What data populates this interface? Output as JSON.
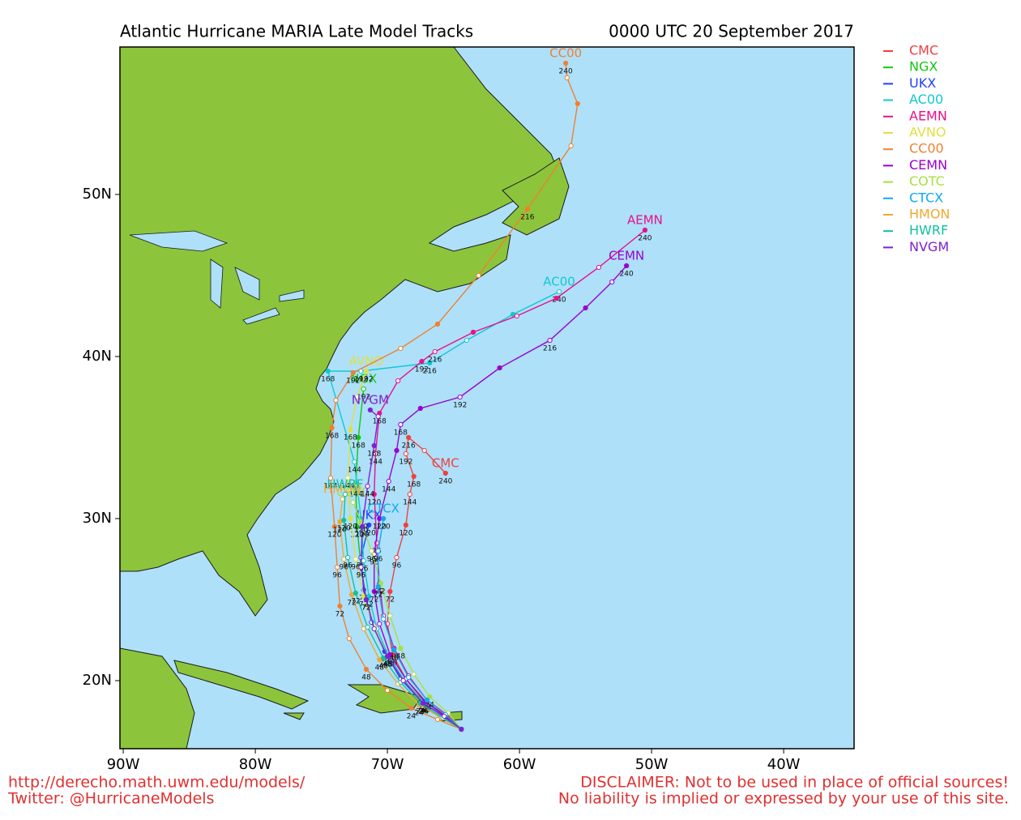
{
  "chart_data": {
    "type": "map",
    "title": "Atlantic Hurricane MARIA Late Model Tracks",
    "subtitle": "0000 UTC 20 September 2017",
    "xlim": [
      -90.25,
      -34.67
    ],
    "ylim": [
      15.8,
      59.1
    ],
    "xticks": [
      {
        "value": -90,
        "label": "90W"
      },
      {
        "value": -80,
        "label": "80W"
      },
      {
        "value": -70,
        "label": "70W"
      },
      {
        "value": -60,
        "label": "60W"
      },
      {
        "value": -50,
        "label": "50W"
      },
      {
        "value": -40,
        "label": "40W"
      }
    ],
    "yticks": [
      {
        "value": 20,
        "label": "20N"
      },
      {
        "value": 30,
        "label": "30N"
      },
      {
        "value": 40,
        "label": "40N"
      },
      {
        "value": 50,
        "label": "50N"
      }
    ],
    "series": [
      {
        "name": "CMC",
        "color": "#f04040",
        "x": [
          -64.4,
          -65.6,
          -67.2,
          -68.6,
          -69.6,
          -70.0,
          -69.8,
          -69.3,
          -68.6,
          -68.3,
          -68.0,
          -68.6,
          -68.4,
          -67.2,
          -65.6
        ],
        "values": [
          17.0,
          17.9,
          18.7,
          20.1,
          21.6,
          23.5,
          25.5,
          27.6,
          29.6,
          31.5,
          32.6,
          34.0,
          35.0,
          34.2,
          32.8
        ],
        "hours": [
          null,
          null,
          24,
          null,
          48,
          null,
          72,
          96,
          120,
          144,
          168,
          192,
          216,
          null,
          240
        ]
      },
      {
        "name": "NGX",
        "color": "#10c810",
        "x": [
          -64.4,
          -65.7,
          -67.3,
          -68.8,
          -70.0,
          -71.0,
          -71.6,
          -72.0,
          -72.3,
          -72.4,
          -72.2,
          -71.8
        ],
        "values": [
          17.0,
          17.8,
          18.6,
          20.0,
          21.5,
          23.2,
          25.0,
          27.0,
          29.5,
          32.0,
          35.0,
          38.0
        ],
        "hours": [
          null,
          null,
          24,
          null,
          48,
          null,
          72,
          96,
          120,
          144,
          168,
          192
        ]
      },
      {
        "name": "UKX",
        "color": "#2040ff",
        "x": [
          -64.4,
          -65.8,
          -67.4,
          -69.0,
          -70.2,
          -71.2,
          -71.8,
          -72.0,
          -71.4
        ],
        "values": [
          17.0,
          17.8,
          18.7,
          20.1,
          21.8,
          23.6,
          25.6,
          27.6,
          29.6
        ],
        "hours": [
          null,
          null,
          24,
          null,
          48,
          null,
          72,
          96,
          120
        ]
      },
      {
        "name": "AC00",
        "color": "#10c8d0",
        "x": [
          -64.4,
          -65.6,
          -67.2,
          -68.7,
          -69.9,
          -70.8,
          -71.4,
          -71.8,
          -72.0,
          -72.5,
          -74.5,
          -72.0,
          -66.8,
          -64.0,
          -60.5,
          -57.0
        ],
        "values": [
          17.0,
          17.8,
          18.6,
          20.0,
          21.5,
          23.2,
          25.2,
          27.4,
          30.0,
          33.5,
          39.1,
          39.1,
          39.6,
          41.0,
          42.6,
          44.0
        ],
        "hours": [
          null,
          null,
          24,
          null,
          48,
          null,
          72,
          96,
          120,
          144,
          168,
          192,
          216,
          null,
          null,
          240
        ]
      },
      {
        "name": "AEMN",
        "color": "#e8108c",
        "x": [
          -64.4,
          -65.5,
          -67.0,
          -68.4,
          -69.5,
          -70.3,
          -70.6,
          -70.8,
          -71.0,
          -70.9,
          -70.6,
          -69.2,
          -67.4,
          -66.4,
          -63.5,
          -60.2,
          -57.2,
          -54.0,
          -50.5
        ],
        "values": [
          17.0,
          17.9,
          18.8,
          20.3,
          22.0,
          24.0,
          26.0,
          28.5,
          31.5,
          34.0,
          36.5,
          38.5,
          39.7,
          40.3,
          41.5,
          42.5,
          43.6,
          45.5,
          47.8
        ],
        "hours": [
          null,
          null,
          24,
          null,
          48,
          null,
          72,
          96,
          120,
          144,
          168,
          null,
          192,
          216,
          null,
          null,
          null,
          null,
          240
        ]
      },
      {
        "name": "AVNO",
        "color": "#e0e040",
        "x": [
          -64.4,
          -65.7,
          -67.3,
          -68.8,
          -70.0,
          -71.0,
          -71.8,
          -72.4,
          -72.8,
          -73.0,
          -72.8,
          -72.3,
          -71.6
        ],
        "values": [
          17.0,
          17.8,
          18.6,
          20.0,
          21.5,
          23.3,
          25.2,
          27.5,
          30.0,
          32.5,
          35.5,
          37.5,
          39.1
        ],
        "hours": [
          null,
          null,
          24,
          null,
          48,
          null,
          72,
          96,
          120,
          144,
          168,
          null,
          192
        ]
      },
      {
        "name": "CC00",
        "color": "#f08030",
        "x": [
          -64.4,
          -66.2,
          -68.2,
          -70.0,
          -71.6,
          -72.9,
          -73.6,
          -73.8,
          -74.0,
          -74.3,
          -74.2,
          -73.9,
          -72.6,
          -69.0,
          -66.2,
          -63.1,
          -59.4,
          -56.1,
          -55.6,
          -56.4,
          -56.5
        ],
        "values": [
          17.0,
          17.6,
          18.3,
          19.4,
          20.7,
          22.6,
          24.6,
          27.0,
          29.5,
          32.5,
          35.6,
          37.3,
          39.0,
          40.5,
          42.0,
          45.0,
          49.1,
          53.0,
          55.6,
          57.2,
          58.1
        ],
        "hours": [
          null,
          null,
          24,
          null,
          48,
          null,
          72,
          96,
          120,
          144,
          168,
          null,
          192,
          null,
          null,
          null,
          216,
          null,
          null,
          null,
          240
        ]
      },
      {
        "name": "CEMN",
        "color": "#9a00d0",
        "x": [
          -64.4,
          -65.6,
          -67.1,
          -68.6,
          -69.8,
          -70.6,
          -71.0,
          -71.0,
          -70.6,
          -69.9,
          -69.3,
          -69.0,
          -67.5,
          -64.5,
          -61.5,
          -57.7,
          -55.0,
          -53.0,
          -51.9
        ],
        "values": [
          17.0,
          17.8,
          18.7,
          20.1,
          21.6,
          23.5,
          25.5,
          27.8,
          30.0,
          32.3,
          34.2,
          35.8,
          36.8,
          37.5,
          39.3,
          41.0,
          43.0,
          44.6,
          45.6
        ],
        "hours": [
          null,
          null,
          24,
          null,
          48,
          null,
          72,
          96,
          120,
          144,
          null,
          168,
          null,
          192,
          null,
          216,
          null,
          null,
          240
        ]
      },
      {
        "name": "COTC",
        "color": "#a8e040",
        "x": [
          -64.4,
          -65.4,
          -66.8,
          -68.0,
          -69.0,
          -69.8,
          -70.5,
          -71.2,
          -72.0,
          -72.6
        ],
        "values": [
          17.0,
          18.0,
          19.0,
          20.4,
          22.0,
          24.0,
          26.0,
          28.0,
          29.8,
          31.0
        ],
        "hours": [
          null,
          null,
          24,
          null,
          48,
          null,
          72,
          96,
          120,
          null
        ]
      },
      {
        "name": "CTCX",
        "color": "#10a8f0",
        "x": [
          -64.4,
          -65.6,
          -67.0,
          -68.4,
          -69.5,
          -70.3,
          -70.7,
          -70.7,
          -70.3
        ],
        "values": [
          17.0,
          17.9,
          18.8,
          20.2,
          21.9,
          23.8,
          25.8,
          28.0,
          30.0
        ],
        "hours": [
          null,
          null,
          24,
          null,
          48,
          null,
          72,
          96,
          120
        ]
      },
      {
        "name": "HMON",
        "color": "#f0a830",
        "x": [
          -64.4,
          -65.9,
          -67.6,
          -69.2,
          -70.6,
          -71.8,
          -72.7,
          -73.3,
          -73.6,
          -73.4
        ],
        "values": [
          17.0,
          17.7,
          18.5,
          19.8,
          21.3,
          23.2,
          25.3,
          27.5,
          29.8,
          31.2
        ],
        "hours": [
          null,
          null,
          24,
          null,
          48,
          null,
          72,
          96,
          120,
          null
        ]
      },
      {
        "name": "HWRF",
        "color": "#10c0a0",
        "x": [
          -64.4,
          -65.8,
          -67.5,
          -69.0,
          -70.3,
          -71.5,
          -72.4,
          -73.0,
          -73.3,
          -73.2
        ],
        "values": [
          17.0,
          17.7,
          18.6,
          19.9,
          21.4,
          23.3,
          25.4,
          27.6,
          29.9,
          31.5
        ],
        "hours": [
          null,
          null,
          24,
          null,
          48,
          null,
          72,
          96,
          120,
          null
        ]
      },
      {
        "name": "NVGM",
        "color": "#8020d0",
        "x": [
          -64.4,
          -65.7,
          -67.3,
          -68.8,
          -70.0,
          -71.0,
          -71.6,
          -72.0,
          -71.9,
          -71.5,
          -71.0,
          -70.7,
          -71.3
        ],
        "values": [
          17.0,
          17.8,
          18.6,
          20.0,
          21.5,
          23.2,
          25.0,
          27.0,
          29.5,
          32.0,
          34.5,
          36.3,
          36.7
        ],
        "hours": [
          null,
          null,
          24,
          null,
          48,
          null,
          72,
          96,
          120,
          144,
          168,
          null,
          null
        ]
      }
    ]
  },
  "footer": {
    "left": [
      "http://derecho.math.uwm.edu/models/",
      "Twitter: @HurricaneModels"
    ],
    "right": [
      "DISCLAIMER: Not to be used in place of official sources!",
      "No liability is implied or expressed by your use of this site."
    ]
  }
}
